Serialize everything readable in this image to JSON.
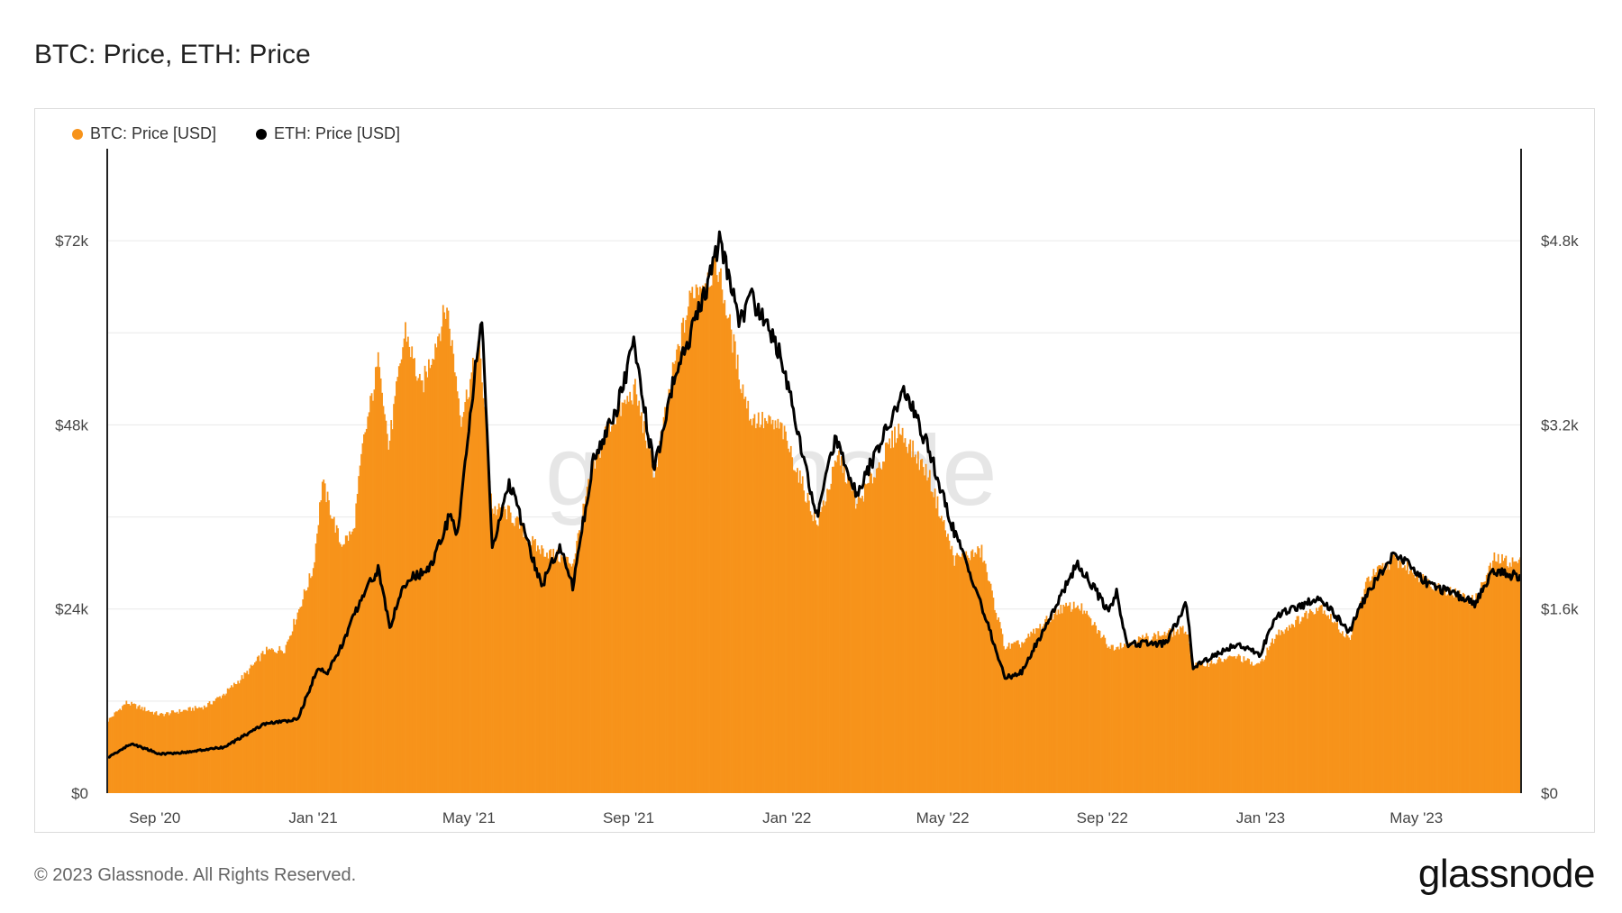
{
  "title": "BTC: Price, ETH: Price",
  "footer": "© 2023 Glassnode. All Rights Reserved.",
  "brand": "glassnode",
  "watermark": "glassnode",
  "legend": [
    {
      "label": "BTC: Price [USD]",
      "color": "#f7931a"
    },
    {
      "label": "ETH: Price [USD]",
      "color": "#000000"
    }
  ],
  "chart_data": {
    "type": "bar",
    "x_ticks": [
      "Sep '20",
      "Jan '21",
      "May '21",
      "Sep '21",
      "Jan '22",
      "May '22",
      "Sep '22",
      "Jan '23",
      "May '23"
    ],
    "y_left_ticks": [
      "$0",
      "$24k",
      "$48k",
      "$72k"
    ],
    "y_right_ticks": [
      "$0",
      "$1.6k",
      "$3.2k",
      "$4.8k"
    ],
    "ylim_left": [
      0,
      84000
    ],
    "ylim_right": [
      0,
      5600
    ],
    "x_start": "2020-07-27",
    "x_end": "2023-07-20",
    "colors": {
      "btc": "#f7931a",
      "eth": "#000000"
    },
    "series": [
      {
        "name": "BTC: Price [USD]",
        "chart": "bar",
        "axis": "left",
        "points": [
          [
            "2020-07-27",
            9500
          ],
          [
            "2020-08-10",
            11800
          ],
          [
            "2020-09-05",
            10200
          ],
          [
            "2020-10-10",
            11300
          ],
          [
            "2020-10-25",
            13000
          ],
          [
            "2020-11-10",
            15500
          ],
          [
            "2020-11-25",
            18500
          ],
          [
            "2020-12-10",
            18800
          ],
          [
            "2020-12-20",
            23500
          ],
          [
            "2021-01-01",
            29300
          ],
          [
            "2021-01-08",
            40500
          ],
          [
            "2021-01-22",
            32500
          ],
          [
            "2021-02-01",
            34000
          ],
          [
            "2021-02-08",
            45000
          ],
          [
            "2021-02-21",
            57000
          ],
          [
            "2021-02-28",
            45000
          ],
          [
            "2021-03-13",
            60500
          ],
          [
            "2021-03-25",
            52500
          ],
          [
            "2021-04-14",
            63500
          ],
          [
            "2021-04-25",
            49000
          ],
          [
            "2021-05-09",
            58500
          ],
          [
            "2021-05-19",
            37000
          ],
          [
            "2021-06-01",
            36500
          ],
          [
            "2021-06-22",
            32000
          ],
          [
            "2021-07-20",
            30000
          ],
          [
            "2021-08-01",
            40000
          ],
          [
            "2021-08-15",
            47500
          ],
          [
            "2021-09-06",
            52500
          ],
          [
            "2021-09-21",
            41500
          ],
          [
            "2021-10-06",
            55500
          ],
          [
            "2021-10-20",
            65500
          ],
          [
            "2021-11-09",
            68500
          ],
          [
            "2021-11-26",
            54000
          ],
          [
            "2021-12-04",
            49000
          ],
          [
            "2021-12-28",
            47500
          ],
          [
            "2022-01-10",
            41500
          ],
          [
            "2022-01-24",
            35000
          ],
          [
            "2022-02-10",
            44000
          ],
          [
            "2022-02-24",
            37500
          ],
          [
            "2022-03-28",
            47500
          ],
          [
            "2022-04-20",
            41500
          ],
          [
            "2022-05-10",
            30500
          ],
          [
            "2022-05-31",
            31500
          ],
          [
            "2022-06-18",
            19000
          ],
          [
            "2022-07-01",
            19500
          ],
          [
            "2022-07-30",
            24000
          ],
          [
            "2022-08-14",
            24500
          ],
          [
            "2022-09-07",
            19000
          ],
          [
            "2022-10-05",
            20300
          ],
          [
            "2022-11-05",
            21300
          ],
          [
            "2022-11-10",
            16500
          ],
          [
            "2022-12-14",
            17800
          ],
          [
            "2022-12-30",
            16500
          ],
          [
            "2023-01-14",
            20800
          ],
          [
            "2023-02-16",
            24500
          ],
          [
            "2023-03-10",
            20000
          ],
          [
            "2023-03-25",
            28000
          ],
          [
            "2023-04-14",
            30500
          ],
          [
            "2023-05-10",
            27500
          ],
          [
            "2023-06-15",
            25000
          ],
          [
            "2023-06-30",
            30500
          ],
          [
            "2023-07-20",
            30000
          ]
        ]
      },
      {
        "name": "ETH: Price [USD]",
        "chart": "line",
        "axis": "right",
        "points": [
          [
            "2020-07-27",
            310
          ],
          [
            "2020-08-14",
            430
          ],
          [
            "2020-09-05",
            340
          ],
          [
            "2020-09-25",
            355
          ],
          [
            "2020-10-25",
            400
          ],
          [
            "2020-11-24",
            600
          ],
          [
            "2020-12-20",
            640
          ],
          [
            "2021-01-05",
            1100
          ],
          [
            "2021-01-12",
            1040
          ],
          [
            "2021-01-25",
            1330
          ],
          [
            "2021-02-07",
            1700
          ],
          [
            "2021-02-20",
            1950
          ],
          [
            "2021-03-01",
            1450
          ],
          [
            "2021-03-14",
            1850
          ],
          [
            "2021-04-01",
            1950
          ],
          [
            "2021-04-16",
            2400
          ],
          [
            "2021-04-22",
            2250
          ],
          [
            "2021-05-03",
            3400
          ],
          [
            "2021-05-11",
            4150
          ],
          [
            "2021-05-19",
            2100
          ],
          [
            "2021-06-01",
            2700
          ],
          [
            "2021-06-26",
            1800
          ],
          [
            "2021-07-10",
            2150
          ],
          [
            "2021-07-20",
            1800
          ],
          [
            "2021-08-05",
            2900
          ],
          [
            "2021-08-22",
            3300
          ],
          [
            "2021-09-05",
            3900
          ],
          [
            "2021-09-21",
            2800
          ],
          [
            "2021-10-06",
            3600
          ],
          [
            "2021-10-29",
            4300
          ],
          [
            "2021-11-10",
            4800
          ],
          [
            "2021-11-26",
            4100
          ],
          [
            "2021-12-05",
            4300
          ],
          [
            "2021-12-28",
            3800
          ],
          [
            "2022-01-10",
            3100
          ],
          [
            "2022-01-24",
            2400
          ],
          [
            "2022-02-08",
            3100
          ],
          [
            "2022-02-24",
            2600
          ],
          [
            "2022-04-02",
            3500
          ],
          [
            "2022-04-20",
            3000
          ],
          [
            "2022-05-09",
            2300
          ],
          [
            "2022-05-26",
            1800
          ],
          [
            "2022-06-18",
            1000
          ],
          [
            "2022-07-01",
            1050
          ],
          [
            "2022-07-17",
            1400
          ],
          [
            "2022-08-13",
            2000
          ],
          [
            "2022-09-06",
            1580
          ],
          [
            "2022-09-12",
            1750
          ],
          [
            "2022-09-20",
            1300
          ],
          [
            "2022-10-20",
            1300
          ],
          [
            "2022-11-05",
            1650
          ],
          [
            "2022-11-10",
            1100
          ],
          [
            "2022-12-14",
            1300
          ],
          [
            "2022-12-31",
            1200
          ],
          [
            "2023-01-14",
            1550
          ],
          [
            "2023-02-16",
            1700
          ],
          [
            "2023-03-10",
            1400
          ],
          [
            "2023-03-25",
            1750
          ],
          [
            "2023-04-15",
            2100
          ],
          [
            "2023-05-10",
            1820
          ],
          [
            "2023-06-15",
            1650
          ],
          [
            "2023-06-30",
            1930
          ],
          [
            "2023-07-20",
            1880
          ]
        ]
      }
    ]
  }
}
